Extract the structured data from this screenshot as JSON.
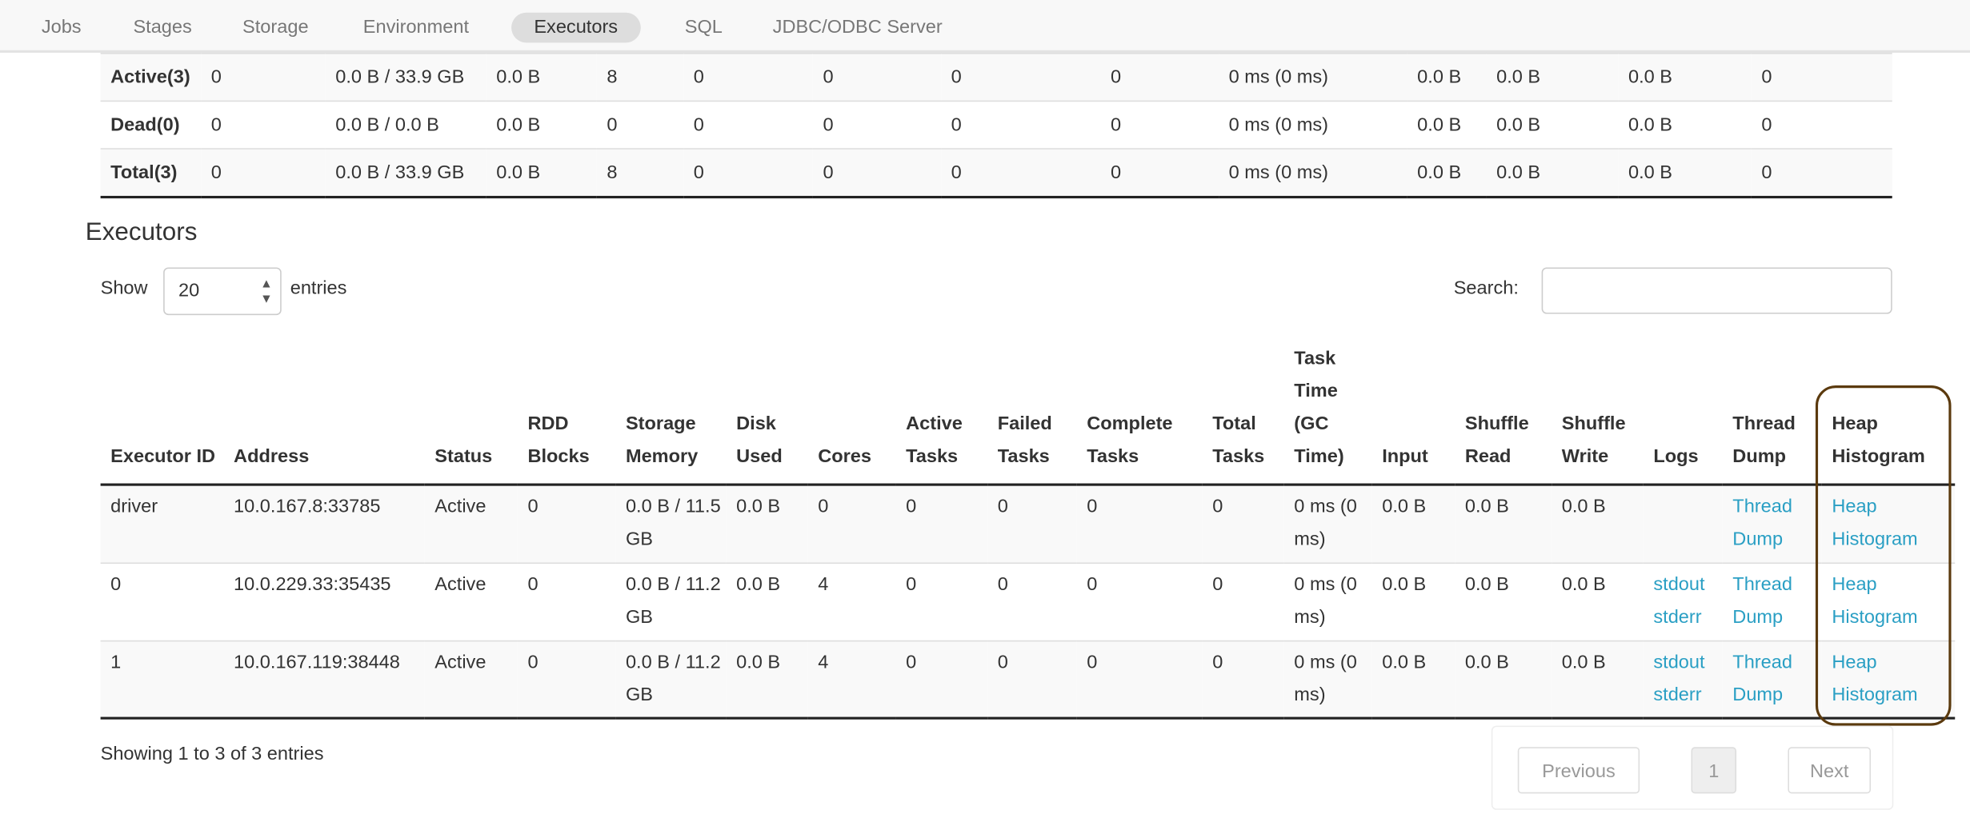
{
  "nav": {
    "tabs": [
      {
        "label": "Jobs"
      },
      {
        "label": "Stages"
      },
      {
        "label": "Storage"
      },
      {
        "label": "Environment"
      },
      {
        "label": "Executors",
        "active": true
      },
      {
        "label": "SQL"
      },
      {
        "label": "JDBC/ODBC Server"
      }
    ]
  },
  "summary": {
    "rows": [
      [
        "Active(3)",
        "0",
        "0.0 B / 33.9 GB",
        "0.0 B",
        "8",
        "0",
        "0",
        "0",
        "0",
        "0 ms (0 ms)",
        "0.0 B",
        "0.0 B",
        "0.0 B",
        "0"
      ],
      [
        "Dead(0)",
        "0",
        "0.0 B / 0.0 B",
        "0.0 B",
        "0",
        "0",
        "0",
        "0",
        "0",
        "0 ms (0 ms)",
        "0.0 B",
        "0.0 B",
        "0.0 B",
        "0"
      ],
      [
        "Total(3)",
        "0",
        "0.0 B / 33.9 GB",
        "0.0 B",
        "8",
        "0",
        "0",
        "0",
        "0",
        "0 ms (0 ms)",
        "0.0 B",
        "0.0 B",
        "0.0 B",
        "0"
      ]
    ]
  },
  "executors": {
    "title": "Executors",
    "show_label": "Show",
    "entries_value": "20",
    "entries_label": "entries",
    "search_label": "Search:",
    "search_value": "",
    "headers": [
      "Executor ID",
      "Address",
      "Status",
      "RDD Blocks",
      "Storage Memory",
      "Disk Used",
      "Cores",
      "Active Tasks",
      "Failed Tasks",
      "Complete Tasks",
      "Total Tasks",
      "Task Time (GC Time)",
      "Input",
      "Shuffle Read",
      "Shuffle Write",
      "Logs",
      "Thread Dump",
      "Heap Histogram"
    ],
    "rows": [
      {
        "cells": [
          "driver",
          "10.0.167.8:33785",
          "Active",
          "0",
          "0.0 B / 11.5 GB",
          "0.0 B",
          "0",
          "0",
          "0",
          "0",
          "0",
          "0 ms (0 ms)",
          "0.0 B",
          "0.0 B",
          "0.0 B"
        ],
        "logs": [],
        "thread_dump": "Thread Dump",
        "heap": "Heap Histogram"
      },
      {
        "cells": [
          "0",
          "10.0.229.33:35435",
          "Active",
          "0",
          "0.0 B / 11.2 GB",
          "0.0 B",
          "4",
          "0",
          "0",
          "0",
          "0",
          "0 ms (0 ms)",
          "0.0 B",
          "0.0 B",
          "0.0 B"
        ],
        "logs": [
          "stdout",
          "stderr"
        ],
        "thread_dump": "Thread Dump",
        "heap": "Heap Histogram"
      },
      {
        "cells": [
          "1",
          "10.0.167.119:38448",
          "Active",
          "0",
          "0.0 B / 11.2 GB",
          "0.0 B",
          "4",
          "0",
          "0",
          "0",
          "0",
          "0 ms (0 ms)",
          "0.0 B",
          "0.0 B",
          "0.0 B"
        ],
        "logs": [
          "stdout",
          "stderr"
        ],
        "thread_dump": "Thread Dump",
        "heap": "Heap Histogram"
      }
    ],
    "info": "Showing 1 to 3 of 3 entries",
    "pagination": {
      "previous": "Previous",
      "page": "1",
      "next": "Next"
    }
  },
  "colors": {
    "link": "#2a9fc4",
    "highlight": "#5b3a0e"
  }
}
